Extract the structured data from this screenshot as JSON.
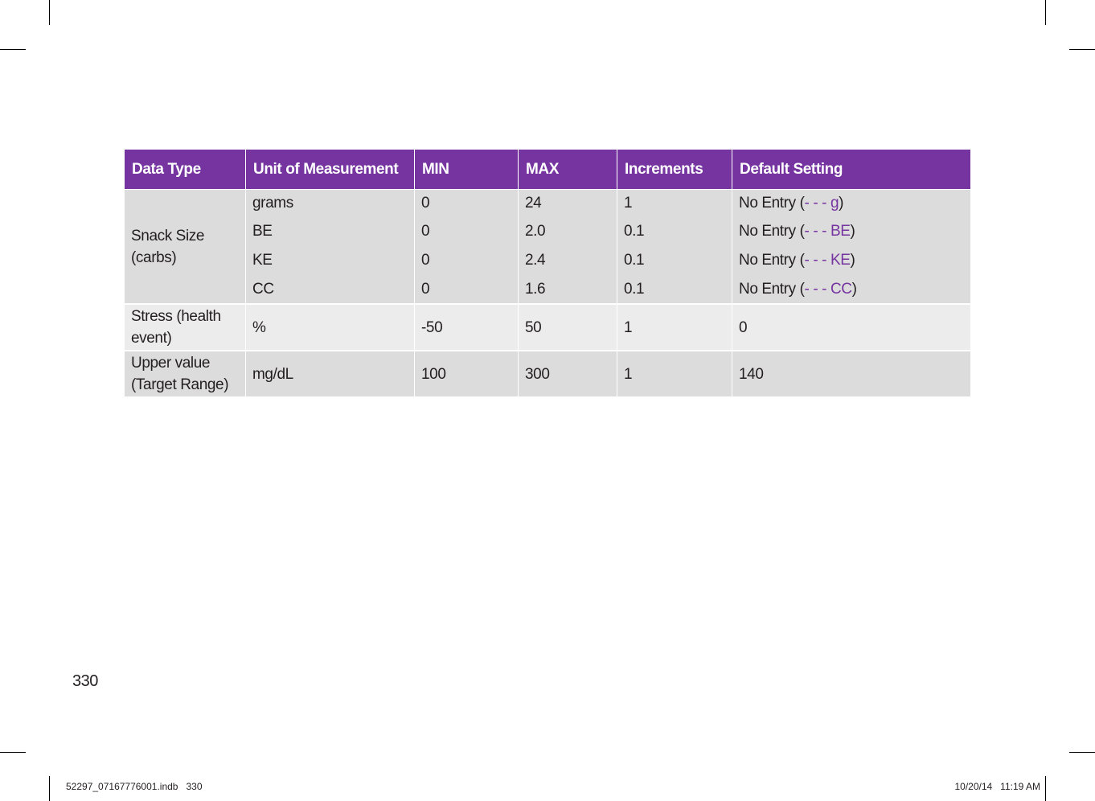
{
  "table": {
    "headers": [
      "Data Type",
      "Unit of Measurement",
      "MIN",
      "MAX",
      "Increments",
      "Default Setting"
    ],
    "snack": {
      "label": "Snack Size (carbs)",
      "rows": [
        {
          "unit": "grams",
          "min": "0",
          "max": "24",
          "inc": "1",
          "def_prefix": "No Entry (",
          "def_accent": "- - - g",
          "def_suffix": ")"
        },
        {
          "unit": "BE",
          "min": "0",
          "max": "2.0",
          "inc": "0.1",
          "def_prefix": "No Entry (",
          "def_accent": "- - - BE",
          "def_suffix": ")"
        },
        {
          "unit": "KE",
          "min": "0",
          "max": "2.4",
          "inc": "0.1",
          "def_prefix": "No Entry (",
          "def_accent": "- - - KE",
          "def_suffix": ")"
        },
        {
          "unit": "CC",
          "min": "0",
          "max": "1.6",
          "inc": "0.1",
          "def_prefix": "No Entry (",
          "def_accent": "- - - CC",
          "def_suffix": ")"
        }
      ]
    },
    "stress": {
      "label": "Stress (health event)",
      "unit": "%",
      "min": "-50",
      "max": "50",
      "inc": "1",
      "def": "0"
    },
    "upper": {
      "label": "Upper value (Target Range)",
      "unit": "mg/dL",
      "min": "100",
      "max": "300",
      "inc": "1",
      "def": "140"
    }
  },
  "page_number": "330",
  "slug": {
    "file": "52297_07167776001.indb   330",
    "date": "10/20/14   11:19 AM"
  },
  "colors": {
    "header_bg": "#7634a0",
    "row_dark": "#dcdcdc",
    "row_light": "#ececec"
  }
}
